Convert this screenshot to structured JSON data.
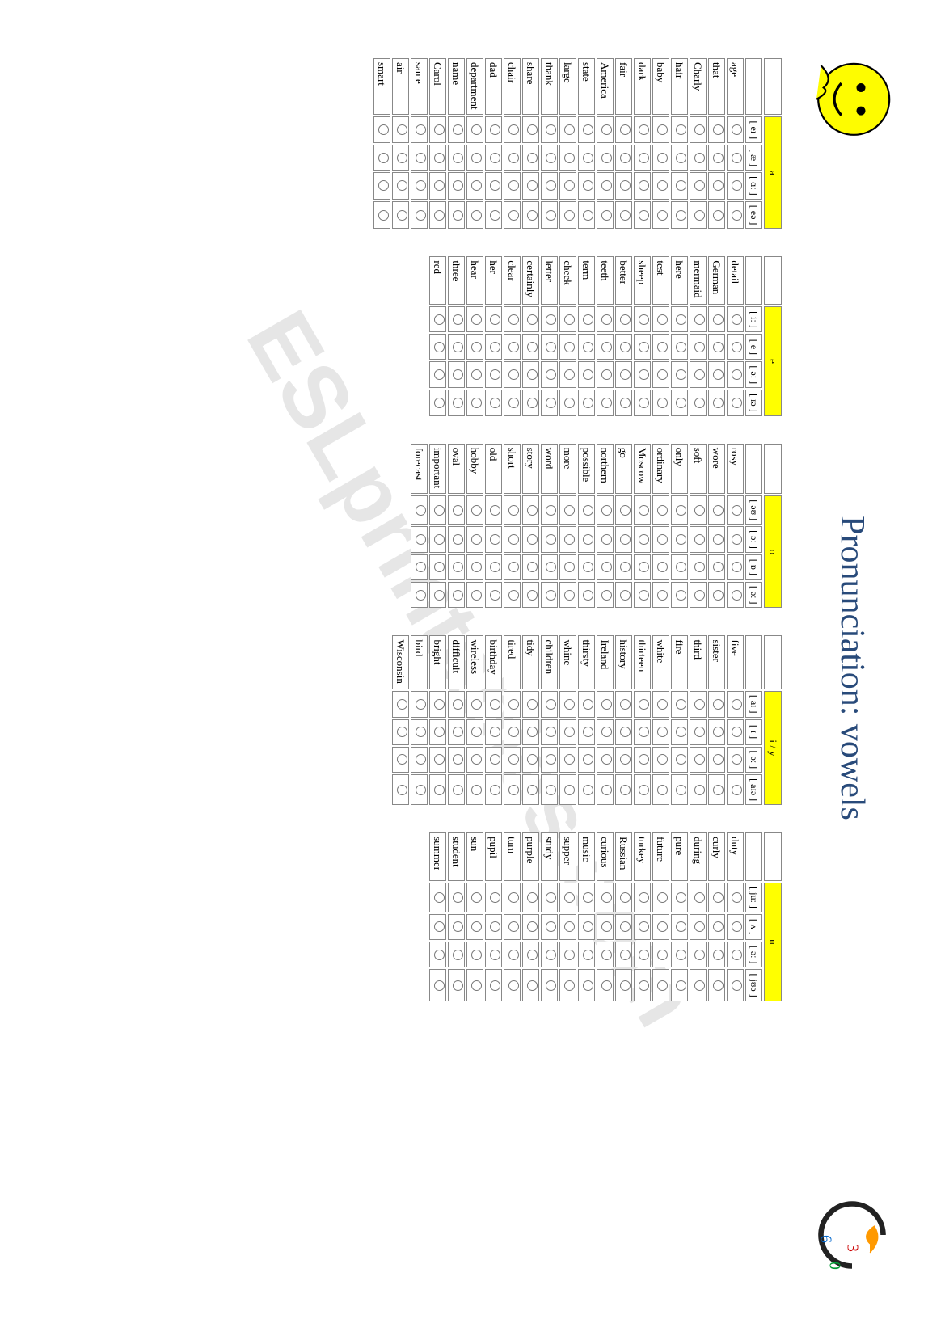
{
  "title": "Pronunciation: vowels",
  "watermark": "ESLprintables.com",
  "tables": [
    {
      "letter": "a",
      "phonemes": [
        "[ eɪ ]",
        "[ æ ]",
        "[ ɑː ]",
        "[ eə ]"
      ],
      "words": [
        "age",
        "that",
        "Charly",
        "hair",
        "baby",
        "dark",
        "fair",
        "America",
        "state",
        "large",
        "thank",
        "share",
        "chair",
        "dad",
        "department",
        "name",
        "Carol",
        "same",
        "air",
        "smart"
      ]
    },
    {
      "letter": "e",
      "phonemes": [
        "[ iː ]",
        "[ e ]",
        "[ əː ]",
        "[ ɪə ]"
      ],
      "words": [
        "detail",
        "German",
        "mermaid",
        "here",
        "test",
        "sheep",
        "better",
        "teeth",
        "term",
        "cheek",
        "letter",
        "certainly",
        "clear",
        "her",
        "hear",
        "three",
        "red"
      ]
    },
    {
      "letter": "o",
      "phonemes": [
        "[ əʊ ]",
        "[ ɔː ]",
        "[ ɒ ]",
        "[ əː ]"
      ],
      "words": [
        "rosy",
        "wore",
        "soft",
        "only",
        "ordinary",
        "Moscow",
        "go",
        "northern",
        "possible",
        "more",
        "word",
        "story",
        "short",
        "old",
        "hobby",
        "oval",
        "important",
        "forecast"
      ]
    },
    {
      "letter": "i / y",
      "phonemes": [
        "[ aɪ ]",
        "[ ɪ ]",
        "[ əː ]",
        "[ aɪə ]"
      ],
      "words": [
        "five",
        "sister",
        "third",
        "fire",
        "white",
        "thirteen",
        "history",
        "Ireland",
        "thirsty",
        "whine",
        "children",
        "tidy",
        "tired",
        "birthday",
        "wireless",
        "difficult",
        "bright",
        "bird",
        "Wisconsin"
      ]
    },
    {
      "letter": "u",
      "phonemes": [
        "[ juː ]",
        "[ ʌ ]",
        "[ əː ]",
        "[ jʊə ]"
      ],
      "words": [
        "duty",
        "curly",
        "during",
        "pure",
        "future",
        "turkey",
        "Russian",
        "curious",
        "music",
        "supper",
        "study",
        "purple",
        "turn",
        "pupil",
        "sun",
        "student",
        "summer"
      ]
    }
  ]
}
